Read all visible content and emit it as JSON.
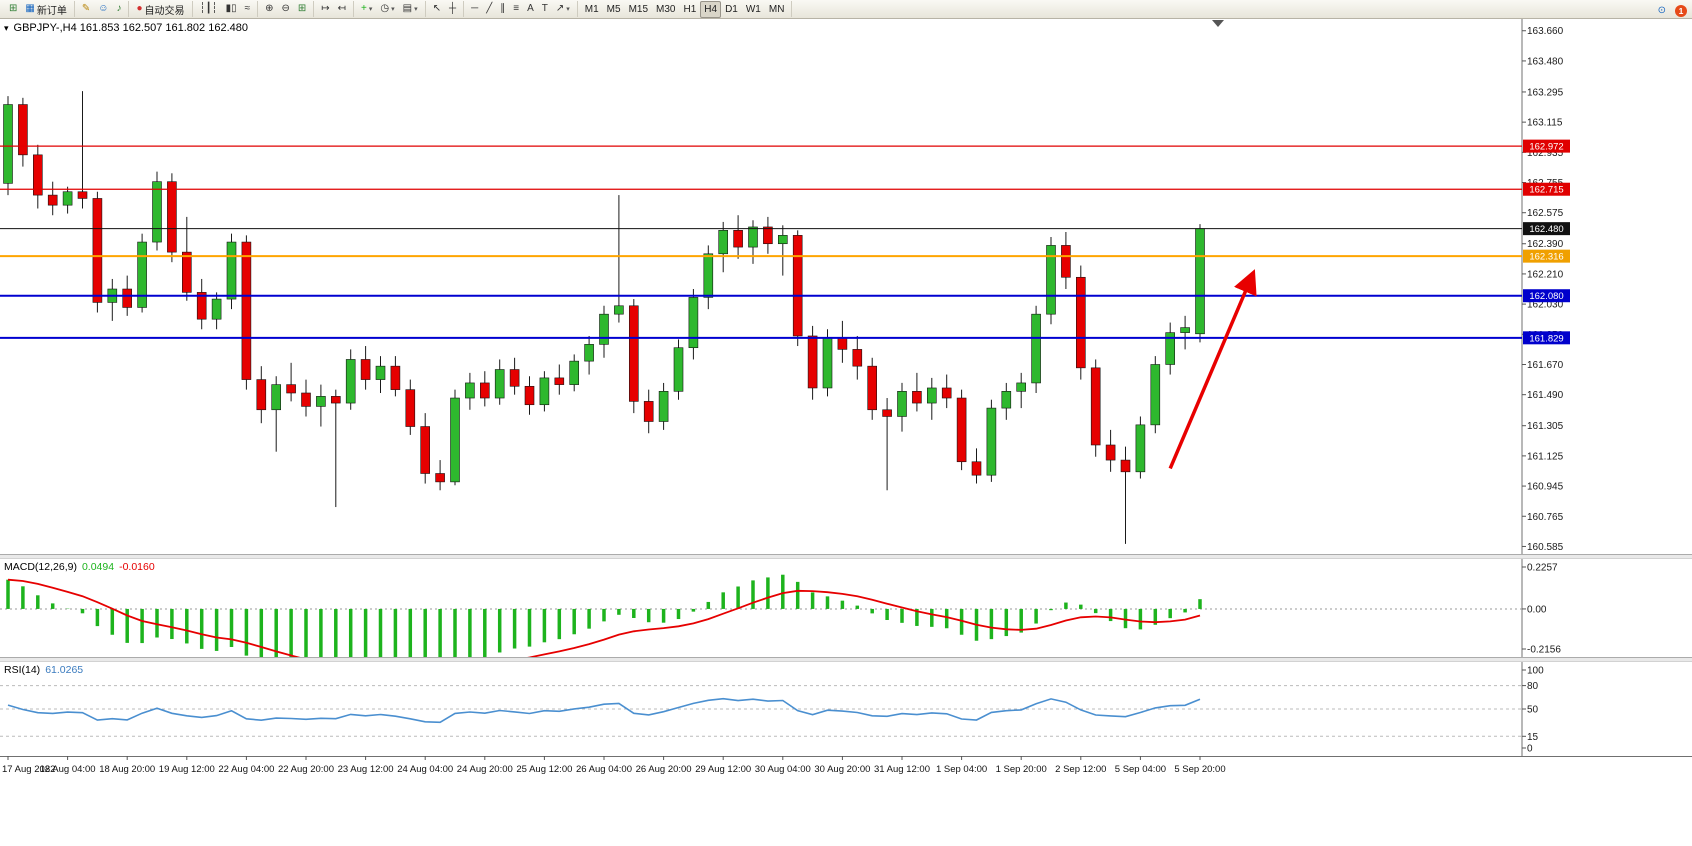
{
  "toolbar": {
    "groups": [
      {
        "items": [
          {
            "name": "new-chart-button",
            "glyph": "⊞",
            "color": "#2e7d32"
          },
          {
            "name": "new-order-button",
            "glyph": "▦",
            "color": "#1565c0",
            "label": "新订单"
          }
        ]
      },
      {
        "items": [
          {
            "name": "annotate-button",
            "glyph": "✎",
            "color": "#b8860b"
          },
          {
            "name": "community-button",
            "glyph": "☺",
            "color": "#1565c0"
          },
          {
            "name": "sound-button",
            "glyph": "♪",
            "color": "#2e7d32"
          }
        ]
      },
      {
        "items": [
          {
            "name": "autotrading-button",
            "glyph": "●",
            "color": "#d32f2f",
            "label": "自动交易"
          }
        ]
      },
      {
        "items": [
          {
            "name": "bar-chart-type-button",
            "glyph": "┆┃┆"
          },
          {
            "name": "candlestick-type-button",
            "glyph": "▮▯"
          },
          {
            "name": "line-chart-type-button",
            "glyph": "≈"
          }
        ]
      },
      {
        "items": [
          {
            "name": "zoom-in-button",
            "glyph": "⊕"
          },
          {
            "name": "zoom-out-button",
            "glyph": "⊖"
          },
          {
            "name": "tile-windows-button",
            "glyph": "⊞",
            "color": "#2e7d32"
          }
        ]
      },
      {
        "items": [
          {
            "name": "auto-scroll-button",
            "glyph": "↦"
          },
          {
            "name": "chart-shift-button",
            "glyph": "↤"
          }
        ]
      },
      {
        "items": [
          {
            "name": "indicators-button",
            "glyph": "+",
            "color": "#1db31d",
            "dropdown": true
          },
          {
            "name": "periods-button",
            "glyph": "◷",
            "dropdown": true
          },
          {
            "name": "templates-button",
            "glyph": "▤",
            "dropdown": true
          }
        ]
      },
      {
        "items": [
          {
            "name": "cursor-button",
            "glyph": "↖"
          },
          {
            "name": "crosshair-button",
            "glyph": "┼"
          }
        ]
      },
      {
        "items": [
          {
            "name": "hline-tool-button",
            "glyph": "─"
          },
          {
            "name": "trendline-tool-button",
            "glyph": "╱"
          },
          {
            "name": "channel-tool-button",
            "glyph": "∥"
          },
          {
            "name": "fibonacci-tool-button",
            "glyph": "≡"
          },
          {
            "name": "text-tool-button",
            "glyph": "A"
          },
          {
            "name": "label-tool-button",
            "glyph": "T"
          },
          {
            "name": "arrows-tool-button",
            "glyph": "↗",
            "dropdown": true
          }
        ]
      },
      {
        "items": [
          {
            "name": "timeframe-m1-button",
            "label": "M1"
          },
          {
            "name": "timeframe-m5-button",
            "label": "M5"
          },
          {
            "name": "timeframe-m15-button",
            "label": "M15"
          },
          {
            "name": "timeframe-m30-button",
            "label": "M30"
          },
          {
            "name": "timeframe-h1-button",
            "label": "H1"
          },
          {
            "name": "timeframe-h4-button",
            "label": "H4",
            "active": true
          },
          {
            "name": "timeframe-d1-button",
            "label": "D1"
          },
          {
            "name": "timeframe-w1-button",
            "label": "W1"
          },
          {
            "name": "timeframe-mn-button",
            "label": "MN"
          }
        ]
      }
    ],
    "right": [
      {
        "name": "search-button",
        "glyph": "⊙",
        "color": "#1565c0"
      },
      {
        "name": "notifications-badge",
        "count": "1"
      }
    ]
  },
  "main_chart": {
    "title": "GBPJPY-,H4 161.853 162.507 161.802 162.480",
    "collapse_glyph": "▾"
  },
  "macd_panel": {
    "name": "MACD(12,26,9)",
    "value_main": "0.0494",
    "value_signal": "-0.0160"
  },
  "rsi_panel": {
    "name": "RSI(14)",
    "value": "61.0265"
  },
  "colors": {
    "up": "#2eb82e",
    "down": "#e60000",
    "wick": "#1a1a1a",
    "macd_hist": "#1db31d",
    "macd_signal": "#e60000",
    "rsi_line": "#4a8fd0",
    "axis_text": "#1a1a1a",
    "axis_border": "#707070",
    "guide": "#bbbbbb",
    "arrow": "#e80000"
  },
  "chart_data": {
    "type": "candlestick",
    "symbol": "GBPJPY-",
    "period": "H4",
    "ohlc_current": {
      "open": 161.853,
      "high": 162.507,
      "low": 161.802,
      "close": 162.48
    },
    "ylim": [
      160.54,
      163.73
    ],
    "price_ticks": [
      "163.660",
      "163.480",
      "163.295",
      "163.115",
      "162.935",
      "162.755",
      "162.575",
      "162.390",
      "162.210",
      "162.030",
      "161.850",
      "161.670",
      "161.490",
      "161.305",
      "161.125",
      "160.945",
      "160.765",
      "160.585"
    ],
    "x_labels": [
      "17 Aug 2022",
      "18 Aug 04:00",
      "18 Aug 20:00",
      "19 Aug 12:00",
      "22 Aug 04:00",
      "22 Aug 20:00",
      "23 Aug 12:00",
      "24 Aug 04:00",
      "24 Aug 20:00",
      "25 Aug 12:00",
      "26 Aug 04:00",
      "26 Aug 20:00",
      "29 Aug 12:00",
      "30 Aug 04:00",
      "30 Aug 20:00",
      "31 Aug 12:00",
      "1 Sep 04:00",
      "1 Sep 20:00",
      "2 Sep 12:00",
      "5 Sep 04:00",
      "5 Sep 20:00"
    ],
    "bars_per_label": 4,
    "candles": [
      [
        162.75,
        163.27,
        162.68,
        163.22
      ],
      [
        163.22,
        163.26,
        162.85,
        162.92
      ],
      [
        162.92,
        162.98,
        162.6,
        162.68
      ],
      [
        162.68,
        162.76,
        162.56,
        162.62
      ],
      [
        162.62,
        162.73,
        162.57,
        162.7
      ],
      [
        162.7,
        163.3,
        162.6,
        162.66
      ],
      [
        162.66,
        162.7,
        161.98,
        162.04
      ],
      [
        162.04,
        162.18,
        161.93,
        162.12
      ],
      [
        162.12,
        162.2,
        161.96,
        162.01
      ],
      [
        162.01,
        162.45,
        161.98,
        162.4
      ],
      [
        162.4,
        162.82,
        162.35,
        162.76
      ],
      [
        162.76,
        162.81,
        162.28,
        162.34
      ],
      [
        162.34,
        162.55,
        162.05,
        162.1
      ],
      [
        162.1,
        162.18,
        161.88,
        161.94
      ],
      [
        161.94,
        162.1,
        161.88,
        162.06
      ],
      [
        162.06,
        162.45,
        162.0,
        162.4
      ],
      [
        162.4,
        162.44,
        161.52,
        161.58
      ],
      [
        161.58,
        161.66,
        161.32,
        161.4
      ],
      [
        161.4,
        161.6,
        161.15,
        161.55
      ],
      [
        161.55,
        161.68,
        161.45,
        161.5
      ],
      [
        161.5,
        161.58,
        161.36,
        161.42
      ],
      [
        161.42,
        161.55,
        161.3,
        161.48
      ],
      [
        161.48,
        161.52,
        160.82,
        161.44
      ],
      [
        161.44,
        161.76,
        161.4,
        161.7
      ],
      [
        161.7,
        161.78,
        161.52,
        161.58
      ],
      [
        161.58,
        161.72,
        161.5,
        161.66
      ],
      [
        161.66,
        161.72,
        161.48,
        161.52
      ],
      [
        161.52,
        161.58,
        161.25,
        161.3
      ],
      [
        161.3,
        161.38,
        160.96,
        161.02
      ],
      [
        161.02,
        161.1,
        160.92,
        160.97
      ],
      [
        160.97,
        161.52,
        160.95,
        161.47
      ],
      [
        161.47,
        161.62,
        161.4,
        161.56
      ],
      [
        161.56,
        161.63,
        161.42,
        161.47
      ],
      [
        161.47,
        161.7,
        161.43,
        161.64
      ],
      [
        161.64,
        161.71,
        161.49,
        161.54
      ],
      [
        161.54,
        161.6,
        161.37,
        161.43
      ],
      [
        161.43,
        161.63,
        161.39,
        161.59
      ],
      [
        161.59,
        161.67,
        161.49,
        161.55
      ],
      [
        161.55,
        161.73,
        161.51,
        161.69
      ],
      [
        161.69,
        161.84,
        161.61,
        161.79
      ],
      [
        161.79,
        162.02,
        161.71,
        161.97
      ],
      [
        161.97,
        162.68,
        161.92,
        162.02
      ],
      [
        162.02,
        162.06,
        161.38,
        161.45
      ],
      [
        161.45,
        161.52,
        161.26,
        161.33
      ],
      [
        161.33,
        161.56,
        161.28,
        161.51
      ],
      [
        161.51,
        161.82,
        161.46,
        161.77
      ],
      [
        161.77,
        162.12,
        161.7,
        162.07
      ],
      [
        162.07,
        162.38,
        162.0,
        162.33
      ],
      [
        162.33,
        162.52,
        162.22,
        162.47
      ],
      [
        162.47,
        162.56,
        162.3,
        162.37
      ],
      [
        162.37,
        162.53,
        162.27,
        162.49
      ],
      [
        162.49,
        162.55,
        162.33,
        162.39
      ],
      [
        162.39,
        162.5,
        162.2,
        162.44
      ],
      [
        162.44,
        162.47,
        161.78,
        161.84
      ],
      [
        161.84,
        161.9,
        161.46,
        161.53
      ],
      [
        161.53,
        161.88,
        161.48,
        161.83
      ],
      [
        161.83,
        161.93,
        161.68,
        161.76
      ],
      [
        161.76,
        161.84,
        161.58,
        161.66
      ],
      [
        161.66,
        161.71,
        161.34,
        161.4
      ],
      [
        161.4,
        161.47,
        160.92,
        161.36
      ],
      [
        161.36,
        161.56,
        161.27,
        161.51
      ],
      [
        161.51,
        161.62,
        161.39,
        161.44
      ],
      [
        161.44,
        161.59,
        161.34,
        161.53
      ],
      [
        161.53,
        161.61,
        161.41,
        161.47
      ],
      [
        161.47,
        161.52,
        161.04,
        161.09
      ],
      [
        161.09,
        161.17,
        160.96,
        161.01
      ],
      [
        161.01,
        161.46,
        160.97,
        161.41
      ],
      [
        161.41,
        161.56,
        161.34,
        161.51
      ],
      [
        161.51,
        161.62,
        161.41,
        161.56
      ],
      [
        161.56,
        162.02,
        161.5,
        161.97
      ],
      [
        161.97,
        162.43,
        161.91,
        162.38
      ],
      [
        162.38,
        162.46,
        162.12,
        162.19
      ],
      [
        162.19,
        162.26,
        161.58,
        161.65
      ],
      [
        161.65,
        161.7,
        161.12,
        161.19
      ],
      [
        161.19,
        161.28,
        161.03,
        161.1
      ],
      [
        161.1,
        161.18,
        160.6,
        161.03
      ],
      [
        161.03,
        161.36,
        160.99,
        161.31
      ],
      [
        161.31,
        161.72,
        161.26,
        161.67
      ],
      [
        161.67,
        161.92,
        161.61,
        161.86
      ],
      [
        161.86,
        161.96,
        161.76,
        161.89
      ],
      [
        161.853,
        162.507,
        161.802,
        162.48
      ]
    ],
    "levels": [
      {
        "name": "resistance-line-1",
        "price": 162.972,
        "color": "#e00000",
        "width": 1.3,
        "badge_bg": "#e00000",
        "badge_text": "162.972"
      },
      {
        "name": "resistance-line-2",
        "price": 162.715,
        "color": "#e00000",
        "width": 1.3,
        "badge_bg": "#e00000",
        "badge_text": "162.715"
      },
      {
        "name": "current-price-line",
        "price": 162.48,
        "color": "#111111",
        "width": 1,
        "badge_bg": "#111111",
        "badge_text": "162.480"
      },
      {
        "name": "orange-level-line",
        "price": 162.316,
        "color": "#ffa500",
        "width": 2,
        "badge_bg": "#f0a000",
        "badge_text": "162.316"
      },
      {
        "name": "blue-level-line-1",
        "price": 162.08,
        "color": "#0000d0",
        "width": 2,
        "badge_bg": "#0000cc",
        "badge_text": "162.080"
      },
      {
        "name": "blue-level-line-2",
        "price": 161.829,
        "color": "#0000d0",
        "width": 2,
        "badge_bg": "#0000cc",
        "badge_text": "161.829"
      }
    ],
    "annotations": [
      {
        "type": "arrow",
        "from": {
          "bar": 78,
          "price": 161.05
        },
        "to": {
          "bar": 83.5,
          "price": 162.2
        },
        "color": "#e80000"
      }
    ],
    "indicators": {
      "macd": {
        "type": "histogram+signal",
        "params": [
          12,
          26,
          9
        ],
        "display_main": 0.0494,
        "display_signal": -0.016,
        "axis": [
          0.2257,
          0.0,
          -0.2156
        ],
        "start_value": 0.17
      },
      "rsi": {
        "type": "line",
        "params": [
          14
        ],
        "display_value": 61.0265,
        "axis": [
          100,
          80,
          50,
          15,
          0
        ],
        "guides": [
          80,
          50,
          15
        ],
        "start_value": 55
      }
    }
  }
}
